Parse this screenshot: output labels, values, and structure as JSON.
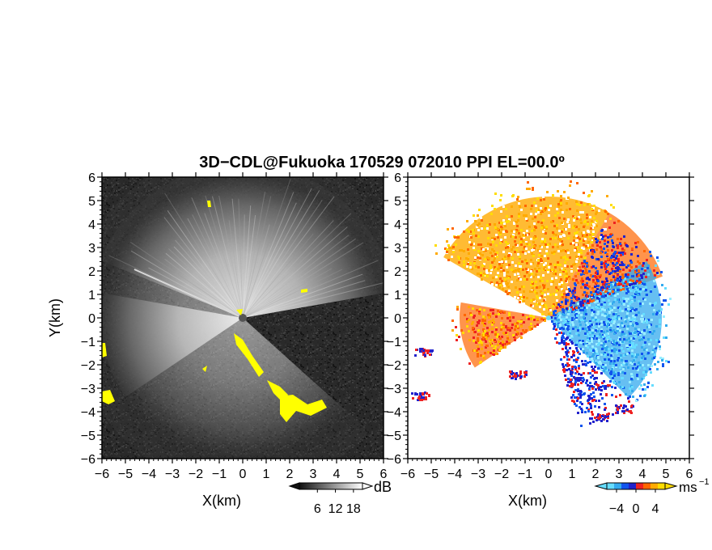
{
  "figure": {
    "title": "3D−CDL@Fukuoka 170529 072010 PPI EL=00.0º"
  },
  "chart_data": [
    {
      "type": "heatmap",
      "panel": "left",
      "quantity": "SNR",
      "xlabel": "X(km)",
      "ylabel": "Y(km)",
      "xlim": [
        -6,
        6
      ],
      "ylim": [
        -6,
        6
      ],
      "xticks": [
        "−6",
        "−5",
        "−4",
        "−3",
        "−2",
        "−1",
        "0",
        "1",
        "2",
        "3",
        "4",
        "5",
        "6"
      ],
      "yticks": [
        "6",
        "5",
        "4",
        "3",
        "2",
        "1",
        "0",
        "−1",
        "−2",
        "−3",
        "−4",
        "−5",
        "−6"
      ],
      "colorbar": {
        "unit": "dB",
        "ticks": [
          "6",
          "12",
          "18"
        ],
        "range": [
          0,
          21
        ],
        "colors": [
          "#111111",
          "#ffffff"
        ]
      },
      "fill_color": "#2a2a2a",
      "highlight_color": "#ffff00",
      "grid": false
    },
    {
      "type": "heatmap",
      "panel": "right",
      "quantity": "Doppler velocity",
      "xlabel": "X(km)",
      "ylabel": "",
      "xlim": [
        -6,
        6
      ],
      "ylim": [
        -6,
        6
      ],
      "xticks": [
        "−6",
        "−5",
        "−4",
        "−3",
        "−2",
        "−1",
        "0",
        "1",
        "2",
        "3",
        "4",
        "5",
        "6"
      ],
      "yticks": [
        "6",
        "5",
        "4",
        "3",
        "2",
        "1",
        "0",
        "−1",
        "−2",
        "−3",
        "−4",
        "−5",
        "−6"
      ],
      "colorbar": {
        "unit": "ms",
        "unit_exponent": "−1",
        "ticks": [
          "−4",
          "0",
          "4"
        ],
        "range": [
          -6,
          6
        ],
        "colors": [
          "#66ddff",
          "#33aaee",
          "#1155ee",
          "#2222cc",
          "#ee2222",
          "#ff6600",
          "#ffaa00",
          "#ffdd00"
        ]
      },
      "grid": false
    }
  ]
}
